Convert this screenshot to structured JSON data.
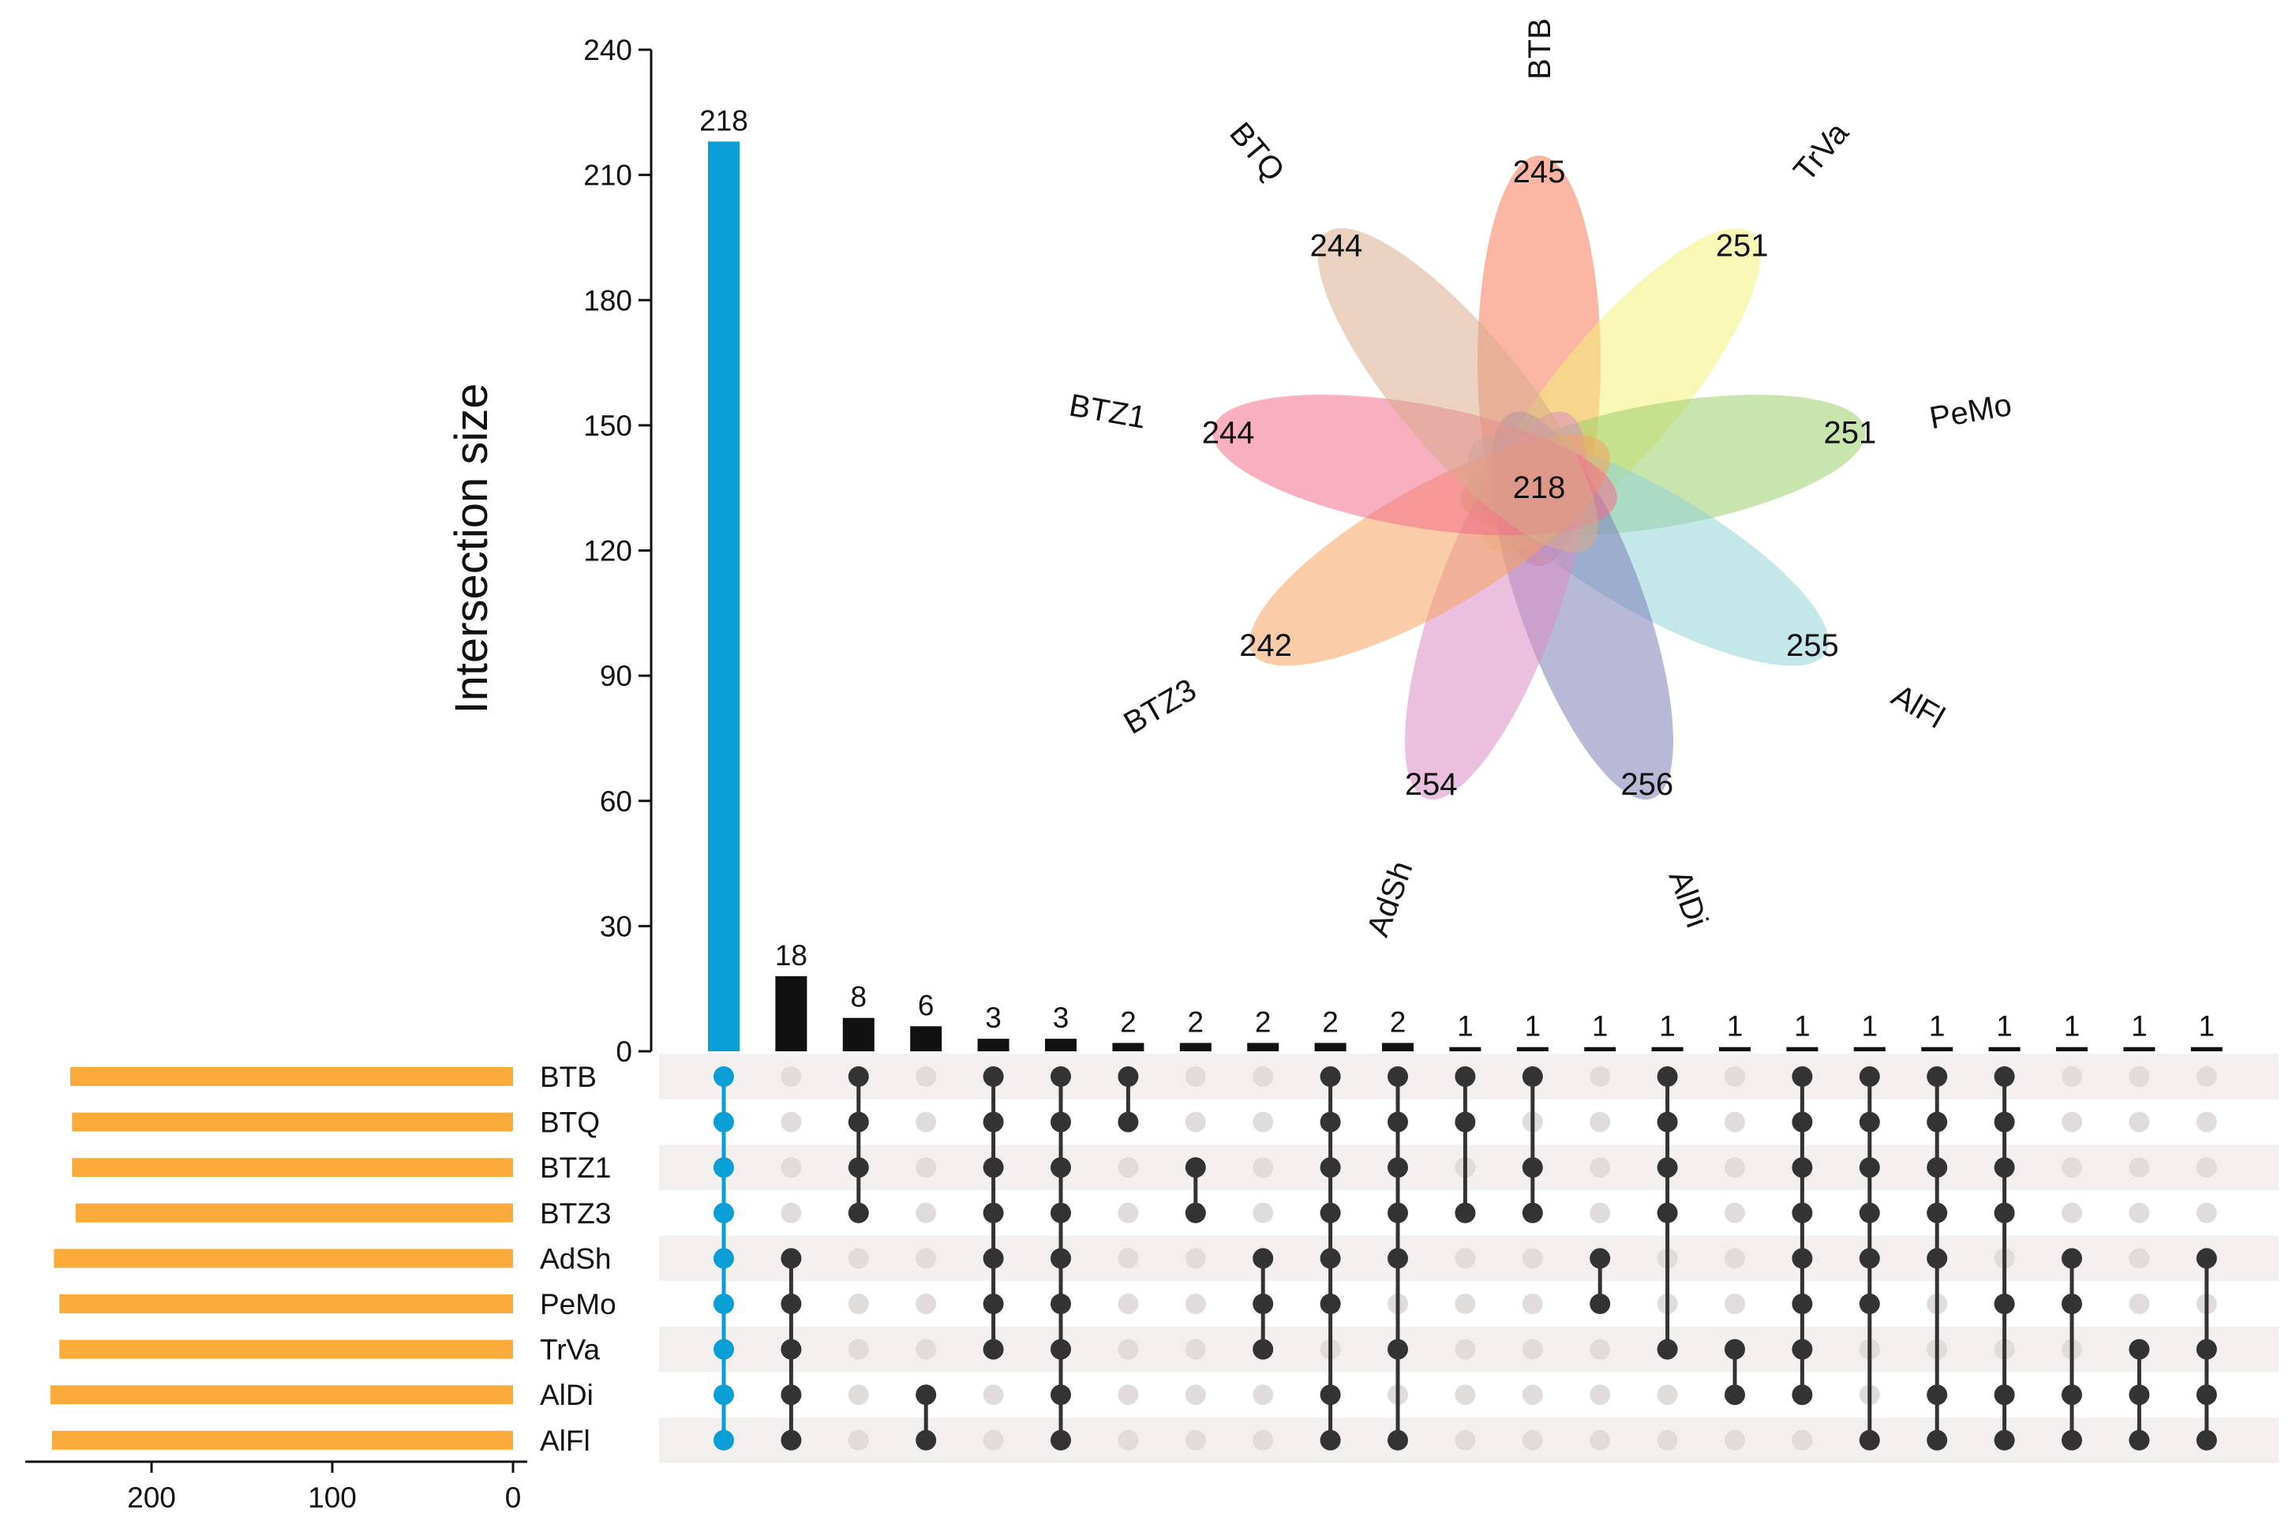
{
  "chart_data": [
    {
      "type": "upset",
      "ylabel": "Intersection size",
      "ylim": [
        0,
        240
      ],
      "yticks": [
        0,
        30,
        60,
        90,
        120,
        150,
        180,
        210,
        240
      ],
      "sets": [
        "BTB",
        "BTQ",
        "BTZ1",
        "BTZ3",
        "AdSh",
        "PeMo",
        "TrVa",
        "AlDi",
        "AlFl"
      ],
      "set_sizes": [
        245,
        244,
        244,
        242,
        254,
        251,
        251,
        256,
        255
      ],
      "set_size_ticks": [
        200,
        100,
        0
      ],
      "intersections": [
        {
          "value": 218,
          "sets": [
            "BTB",
            "BTQ",
            "BTZ1",
            "BTZ3",
            "AdSh",
            "PeMo",
            "TrVa",
            "AlDi",
            "AlFl"
          ],
          "highlight": true
        },
        {
          "value": 18,
          "sets": [
            "AdSh",
            "PeMo",
            "TrVa",
            "AlDi",
            "AlFl"
          ]
        },
        {
          "value": 8,
          "sets": [
            "BTB",
            "BTQ",
            "BTZ1",
            "BTZ3"
          ]
        },
        {
          "value": 6,
          "sets": [
            "AlDi",
            "AlFl"
          ]
        },
        {
          "value": 3,
          "sets": [
            "BTB",
            "BTQ",
            "BTZ1",
            "BTZ3",
            "AdSh",
            "PeMo",
            "TrVa"
          ]
        },
        {
          "value": 3,
          "sets": [
            "BTB",
            "BTQ",
            "BTZ1",
            "BTZ3",
            "AdSh",
            "PeMo",
            "TrVa",
            "AlDi",
            "AlFl"
          ]
        },
        {
          "value": 2,
          "sets": [
            "BTB",
            "BTQ"
          ]
        },
        {
          "value": 2,
          "sets": [
            "BTZ1",
            "BTZ3"
          ]
        },
        {
          "value": 2,
          "sets": [
            "AdSh",
            "PeMo",
            "TrVa"
          ]
        },
        {
          "value": 2,
          "sets": [
            "BTB",
            "BTQ",
            "BTZ1",
            "BTZ3",
            "AdSh",
            "PeMo",
            "AlDi",
            "AlFl"
          ]
        },
        {
          "value": 2,
          "sets": [
            "BTB",
            "BTQ",
            "BTZ1",
            "BTZ3",
            "AdSh",
            "TrVa",
            "AlFl"
          ]
        },
        {
          "value": 1,
          "sets": [
            "BTB",
            "BTQ",
            "BTZ3"
          ]
        },
        {
          "value": 1,
          "sets": [
            "BTB",
            "BTZ1",
            "BTZ3"
          ]
        },
        {
          "value": 1,
          "sets": [
            "AdSh",
            "PeMo"
          ]
        },
        {
          "value": 1,
          "sets": [
            "BTB",
            "BTQ",
            "BTZ1",
            "BTZ3",
            "TrVa"
          ]
        },
        {
          "value": 1,
          "sets": [
            "TrVa",
            "AlDi"
          ]
        },
        {
          "value": 1,
          "sets": [
            "BTB",
            "BTQ",
            "BTZ1",
            "BTZ3",
            "AdSh",
            "PeMo",
            "TrVa",
            "AlDi"
          ]
        },
        {
          "value": 1,
          "sets": [
            "BTB",
            "BTQ",
            "BTZ1",
            "BTZ3",
            "AdSh",
            "PeMo",
            "AlFl"
          ]
        },
        {
          "value": 1,
          "sets": [
            "BTB",
            "BTQ",
            "BTZ1",
            "BTZ3",
            "AdSh",
            "AlDi",
            "AlFl"
          ]
        },
        {
          "value": 1,
          "sets": [
            "BTB",
            "BTQ",
            "BTZ1",
            "BTZ3",
            "PeMo",
            "AlDi",
            "AlFl"
          ]
        },
        {
          "value": 1,
          "sets": [
            "AdSh",
            "PeMo",
            "AlDi",
            "AlFl"
          ]
        },
        {
          "value": 1,
          "sets": [
            "TrVa",
            "AlDi",
            "AlFl"
          ]
        },
        {
          "value": 1,
          "sets": [
            "AdSh",
            "TrVa",
            "AlDi",
            "AlFl"
          ]
        }
      ],
      "colors": {
        "highlight": "#0a9ed6",
        "bar": "#111111",
        "set_bar": "#fbab3a",
        "dot_on": "#333333",
        "dot_off": "#e0dcdc",
        "stripe": "#f3efef"
      }
    },
    {
      "type": "flower-venn",
      "core_value": 218,
      "petals": [
        {
          "name": "BTB",
          "value": 245,
          "color": "#f57a55"
        },
        {
          "name": "TrVa",
          "value": 251,
          "color": "#f2f07a"
        },
        {
          "name": "PeMo",
          "value": 251,
          "color": "#9ad06b"
        },
        {
          "name": "AlFl",
          "value": 255,
          "color": "#93d3d7"
        },
        {
          "name": "AlDi",
          "value": 256,
          "color": "#7e7db7"
        },
        {
          "name": "AdSh",
          "value": 254,
          "color": "#d88cc2"
        },
        {
          "name": "BTZ3",
          "value": 242,
          "color": "#f6a35e"
        },
        {
          "name": "BTZ1",
          "value": 244,
          "color": "#f36e8d"
        },
        {
          "name": "BTQ",
          "value": 244,
          "color": "#d9ab8c"
        }
      ]
    }
  ]
}
